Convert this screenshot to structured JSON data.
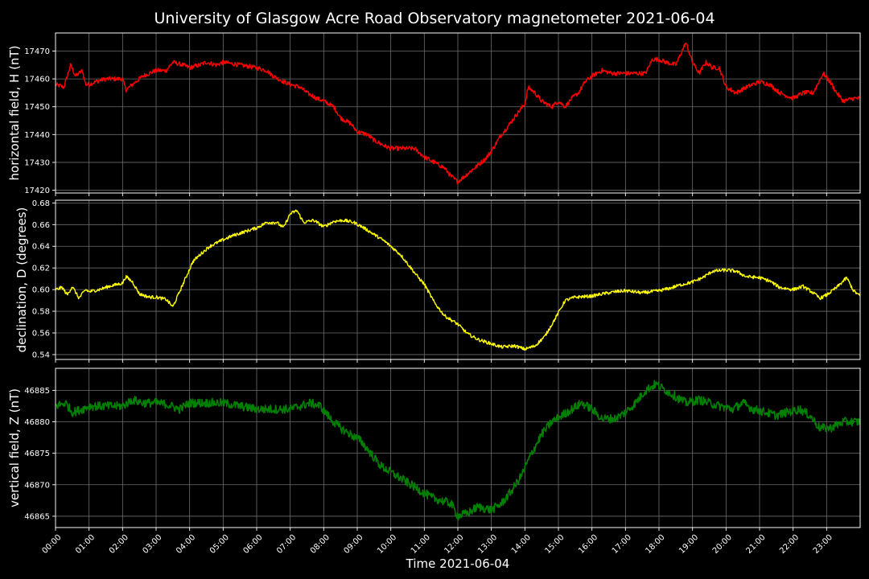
{
  "chart_data": {
    "title": "University of Glasgow Acre Road Observatory magnetometer 2021-06-04",
    "xlabel": "Time 2021-06-04",
    "xlim": [
      "00:00",
      "24:00"
    ],
    "x_ticks": [
      "00:00",
      "01:00",
      "02:00",
      "03:00",
      "04:00",
      "05:00",
      "06:00",
      "07:00",
      "08:00",
      "09:00",
      "10:00",
      "11:00",
      "12:00",
      "13:00",
      "14:00",
      "15:00",
      "16:00",
      "17:00",
      "18:00",
      "19:00",
      "20:00",
      "21:00",
      "22:00",
      "23:00"
    ],
    "grid": true,
    "panels": [
      {
        "type": "line",
        "ylabel": "horizontal field, H (nT)",
        "ylim": [
          17419,
          17476.5
        ],
        "yticks": [
          17420,
          17430,
          17440,
          17450,
          17460,
          17470
        ],
        "color": "#ff0000",
        "noise": 0.8,
        "points": [
          [
            0.0,
            17458
          ],
          [
            0.25,
            17457
          ],
          [
            0.35,
            17461
          ],
          [
            0.45,
            17465
          ],
          [
            0.6,
            17461
          ],
          [
            0.8,
            17463
          ],
          [
            0.9,
            17458
          ],
          [
            1.0,
            17458
          ],
          [
            1.2,
            17459
          ],
          [
            1.5,
            17460
          ],
          [
            1.8,
            17460
          ],
          [
            2.0,
            17460
          ],
          [
            2.1,
            17456
          ],
          [
            2.3,
            17458
          ],
          [
            2.6,
            17461
          ],
          [
            3.0,
            17463
          ],
          [
            3.3,
            17463
          ],
          [
            3.5,
            17466
          ],
          [
            3.8,
            17465
          ],
          [
            4.0,
            17464
          ],
          [
            4.3,
            17465
          ],
          [
            4.5,
            17466
          ],
          [
            4.8,
            17465
          ],
          [
            5.0,
            17466
          ],
          [
            5.5,
            17465
          ],
          [
            6.0,
            17464
          ],
          [
            6.3,
            17463
          ],
          [
            6.5,
            17461
          ],
          [
            6.8,
            17459
          ],
          [
            7.0,
            17458
          ],
          [
            7.3,
            17457
          ],
          [
            7.5,
            17455
          ],
          [
            7.8,
            17453
          ],
          [
            8.0,
            17452
          ],
          [
            8.3,
            17450
          ],
          [
            8.5,
            17446
          ],
          [
            8.8,
            17444
          ],
          [
            9.0,
            17441
          ],
          [
            9.3,
            17440
          ],
          [
            9.5,
            17438
          ],
          [
            9.8,
            17436
          ],
          [
            10.0,
            17435
          ],
          [
            10.3,
            17435
          ],
          [
            10.7,
            17435
          ],
          [
            11.0,
            17432
          ],
          [
            11.3,
            17430
          ],
          [
            11.6,
            17428
          ],
          [
            11.8,
            17425
          ],
          [
            12.0,
            17423
          ],
          [
            12.2,
            17425
          ],
          [
            12.5,
            17428
          ],
          [
            12.8,
            17431
          ],
          [
            13.0,
            17434
          ],
          [
            13.3,
            17440
          ],
          [
            13.5,
            17443
          ],
          [
            13.8,
            17448
          ],
          [
            14.0,
            17451
          ],
          [
            14.1,
            17457
          ],
          [
            14.3,
            17455
          ],
          [
            14.5,
            17452
          ],
          [
            14.8,
            17450
          ],
          [
            15.0,
            17452
          ],
          [
            15.2,
            17450
          ],
          [
            15.4,
            17453
          ],
          [
            15.6,
            17455
          ],
          [
            15.8,
            17459
          ],
          [
            16.0,
            17461
          ],
          [
            16.3,
            17463
          ],
          [
            16.6,
            17462
          ],
          [
            17.0,
            17462
          ],
          [
            17.3,
            17462
          ],
          [
            17.6,
            17462
          ],
          [
            17.8,
            17467
          ],
          [
            18.0,
            17467
          ],
          [
            18.2,
            17466
          ],
          [
            18.5,
            17465
          ],
          [
            18.8,
            17473
          ],
          [
            19.0,
            17466
          ],
          [
            19.2,
            17462
          ],
          [
            19.4,
            17466
          ],
          [
            19.6,
            17464
          ],
          [
            19.8,
            17464
          ],
          [
            20.0,
            17457
          ],
          [
            20.3,
            17455
          ],
          [
            20.6,
            17457
          ],
          [
            21.0,
            17459
          ],
          [
            21.3,
            17458
          ],
          [
            21.6,
            17455
          ],
          [
            22.0,
            17453
          ],
          [
            22.3,
            17455
          ],
          [
            22.6,
            17455
          ],
          [
            22.9,
            17462
          ],
          [
            23.1,
            17459
          ],
          [
            23.3,
            17455
          ],
          [
            23.5,
            17452
          ],
          [
            23.8,
            17453
          ],
          [
            24.0,
            17453
          ]
        ]
      },
      {
        "type": "line",
        "ylabel": "declination, D (degrees)",
        "ylim": [
          0.5355,
          0.6825
        ],
        "yticks": [
          0.54,
          0.56,
          0.58,
          0.6,
          0.62,
          0.64,
          0.66,
          0.68
        ],
        "color": "#ffff00",
        "noise": 0.0015,
        "points": [
          [
            0.0,
            0.6
          ],
          [
            0.2,
            0.602
          ],
          [
            0.35,
            0.595
          ],
          [
            0.5,
            0.603
          ],
          [
            0.7,
            0.592
          ],
          [
            0.9,
            0.6
          ],
          [
            1.0,
            0.598
          ],
          [
            1.3,
            0.6
          ],
          [
            1.6,
            0.603
          ],
          [
            2.0,
            0.606
          ],
          [
            2.1,
            0.612
          ],
          [
            2.3,
            0.607
          ],
          [
            2.5,
            0.596
          ],
          [
            2.8,
            0.593
          ],
          [
            3.0,
            0.593
          ],
          [
            3.3,
            0.591
          ],
          [
            3.5,
            0.584
          ],
          [
            3.7,
            0.598
          ],
          [
            3.9,
            0.612
          ],
          [
            4.1,
            0.626
          ],
          [
            4.3,
            0.632
          ],
          [
            4.6,
            0.64
          ],
          [
            5.0,
            0.646
          ],
          [
            5.3,
            0.65
          ],
          [
            5.6,
            0.653
          ],
          [
            6.0,
            0.657
          ],
          [
            6.3,
            0.662
          ],
          [
            6.6,
            0.662
          ],
          [
            6.8,
            0.657
          ],
          [
            7.0,
            0.67
          ],
          [
            7.2,
            0.673
          ],
          [
            7.4,
            0.662
          ],
          [
            7.7,
            0.664
          ],
          [
            8.0,
            0.658
          ],
          [
            8.3,
            0.663
          ],
          [
            8.6,
            0.664
          ],
          [
            8.9,
            0.662
          ],
          [
            9.2,
            0.657
          ],
          [
            9.5,
            0.651
          ],
          [
            9.8,
            0.645
          ],
          [
            10.0,
            0.64
          ],
          [
            10.3,
            0.632
          ],
          [
            10.6,
            0.62
          ],
          [
            10.8,
            0.612
          ],
          [
            11.0,
            0.605
          ],
          [
            11.3,
            0.588
          ],
          [
            11.6,
            0.576
          ],
          [
            12.0,
            0.568
          ],
          [
            12.3,
            0.559
          ],
          [
            12.6,
            0.554
          ],
          [
            13.0,
            0.55
          ],
          [
            13.3,
            0.547
          ],
          [
            13.7,
            0.548
          ],
          [
            14.0,
            0.545
          ],
          [
            14.3,
            0.548
          ],
          [
            14.6,
            0.557
          ],
          [
            14.9,
            0.573
          ],
          [
            15.2,
            0.59
          ],
          [
            15.5,
            0.593
          ],
          [
            16.0,
            0.594
          ],
          [
            16.3,
            0.596
          ],
          [
            16.7,
            0.598
          ],
          [
            17.0,
            0.599
          ],
          [
            17.5,
            0.597
          ],
          [
            18.0,
            0.599
          ],
          [
            18.3,
            0.601
          ],
          [
            18.6,
            0.604
          ],
          [
            19.0,
            0.607
          ],
          [
            19.3,
            0.611
          ],
          [
            19.6,
            0.617
          ],
          [
            20.0,
            0.618
          ],
          [
            20.3,
            0.617
          ],
          [
            20.6,
            0.612
          ],
          [
            21.0,
            0.611
          ],
          [
            21.3,
            0.608
          ],
          [
            21.6,
            0.602
          ],
          [
            22.0,
            0.6
          ],
          [
            22.3,
            0.603
          ],
          [
            22.6,
            0.597
          ],
          [
            22.8,
            0.592
          ],
          [
            23.0,
            0.595
          ],
          [
            23.3,
            0.602
          ],
          [
            23.6,
            0.611
          ],
          [
            23.8,
            0.599
          ],
          [
            24.0,
            0.594
          ]
        ]
      },
      {
        "type": "line",
        "ylabel": "vertical field, Z (nT)",
        "ylim": [
          46863.2,
          46888.5
        ],
        "yticks": [
          46865,
          46870,
          46875,
          46880,
          46885
        ],
        "color": "#008000",
        "noise": 0.7,
        "points": [
          [
            0.0,
            46882.5
          ],
          [
            0.3,
            46883.0
          ],
          [
            0.5,
            46881.5
          ],
          [
            0.8,
            46882.0
          ],
          [
            1.0,
            46882.5
          ],
          [
            1.5,
            46882.5
          ],
          [
            2.0,
            46882.5
          ],
          [
            2.3,
            46883.5
          ],
          [
            2.6,
            46883.0
          ],
          [
            3.0,
            46883.0
          ],
          [
            3.3,
            46882.8
          ],
          [
            3.7,
            46882.0
          ],
          [
            4.0,
            46883.0
          ],
          [
            4.5,
            46883.0
          ],
          [
            5.0,
            46883.0
          ],
          [
            5.5,
            46882.5
          ],
          [
            6.0,
            46882.0
          ],
          [
            6.5,
            46882.0
          ],
          [
            7.0,
            46882.0
          ],
          [
            7.3,
            46882.5
          ],
          [
            7.6,
            46883.0
          ],
          [
            7.9,
            46882.5
          ],
          [
            8.2,
            46880.5
          ],
          [
            8.5,
            46879.0
          ],
          [
            8.8,
            46878.0
          ],
          [
            9.1,
            46877.0
          ],
          [
            9.4,
            46875.0
          ],
          [
            9.7,
            46873.0
          ],
          [
            10.0,
            46872.0
          ],
          [
            10.3,
            46871.0
          ],
          [
            10.6,
            46870.0
          ],
          [
            10.9,
            46869.0
          ],
          [
            11.2,
            46868.0
          ],
          [
            11.5,
            46867.5
          ],
          [
            11.8,
            46867.0
          ],
          [
            12.0,
            46865.0
          ],
          [
            12.3,
            46865.5
          ],
          [
            12.6,
            46866.5
          ],
          [
            13.0,
            46866.0
          ],
          [
            13.3,
            46867.0
          ],
          [
            13.6,
            46869.0
          ],
          [
            13.9,
            46871.5
          ],
          [
            14.2,
            46875.0
          ],
          [
            14.5,
            46878.0
          ],
          [
            14.8,
            46880.0
          ],
          [
            15.1,
            46881.0
          ],
          [
            15.4,
            46882.0
          ],
          [
            15.7,
            46883.0
          ],
          [
            16.0,
            46882.0
          ],
          [
            16.3,
            46880.5
          ],
          [
            16.7,
            46880.5
          ],
          [
            17.0,
            46881.5
          ],
          [
            17.3,
            46883.0
          ],
          [
            17.6,
            46885.0
          ],
          [
            17.9,
            46886.0
          ],
          [
            18.2,
            46885.0
          ],
          [
            18.5,
            46884.0
          ],
          [
            18.8,
            46883.0
          ],
          [
            19.2,
            46883.5
          ],
          [
            19.5,
            46883.0
          ],
          [
            19.8,
            46882.5
          ],
          [
            20.2,
            46882.0
          ],
          [
            20.5,
            46883.0
          ],
          [
            20.8,
            46882.0
          ],
          [
            21.2,
            46881.5
          ],
          [
            21.5,
            46881.0
          ],
          [
            21.8,
            46881.5
          ],
          [
            22.2,
            46882.0
          ],
          [
            22.5,
            46881.0
          ],
          [
            22.8,
            46879.0
          ],
          [
            23.1,
            46879.0
          ],
          [
            23.5,
            46880.0
          ],
          [
            24.0,
            46880.0
          ]
        ]
      }
    ]
  }
}
